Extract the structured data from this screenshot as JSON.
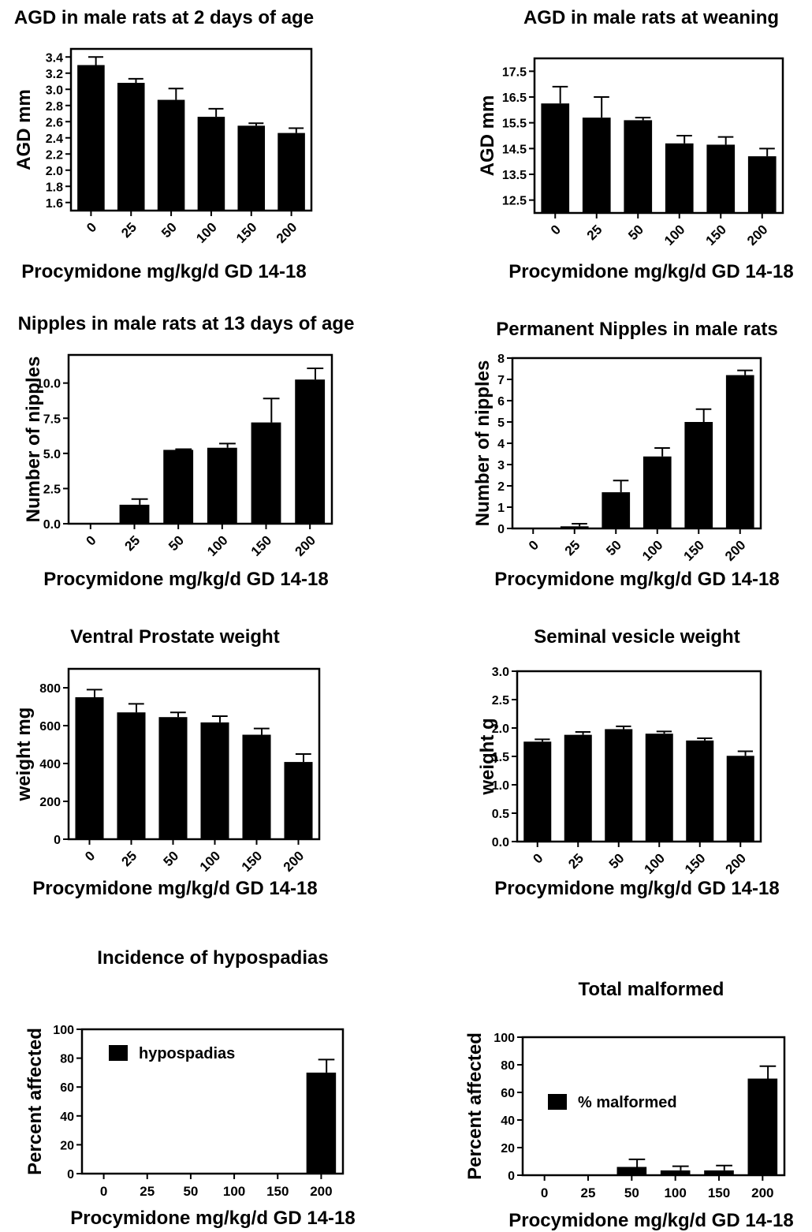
{
  "chart_data": [
    {
      "type": "bar",
      "title": "AGD in male rats at 2 days of age",
      "xlabel": "Procymidone mg/kg/d GD 14-18",
      "ylabel": "AGD mm",
      "categories": [
        "0",
        "25",
        "50",
        "100",
        "150",
        "200"
      ],
      "series": [
        {
          "values": [
            3.3,
            3.08,
            2.87,
            2.66,
            2.55,
            2.46
          ],
          "errors": [
            0.1,
            0.05,
            0.14,
            0.1,
            0.03,
            0.06
          ]
        }
      ],
      "ylim": [
        1.5,
        3.5
      ],
      "yticks": [
        1.6,
        1.8,
        2.0,
        2.2,
        2.4,
        2.6,
        2.8,
        3.0,
        3.2,
        3.4
      ],
      "ytick_labels": [
        "1.6",
        "1.8",
        "2.0",
        "2.2",
        "2.4",
        "2.6",
        "2.8",
        "3.0",
        "3.2",
        "3.4"
      ],
      "rotated_categories": true,
      "grid": false
    },
    {
      "type": "bar",
      "title": "AGD in male rats at weaning",
      "xlabel": "Procymidone mg/kg/d GD 14-18",
      "ylabel": "AGD mm",
      "categories": [
        "0",
        "25",
        "50",
        "100",
        "150",
        "200"
      ],
      "series": [
        {
          "values": [
            16.25,
            15.7,
            15.6,
            14.7,
            14.65,
            14.2
          ],
          "errors": [
            0.65,
            0.8,
            0.1,
            0.3,
            0.3,
            0.3
          ]
        }
      ],
      "ylim": [
        12.0,
        18.0
      ],
      "yticks": [
        12.5,
        13.5,
        14.5,
        15.5,
        16.5,
        17.5
      ],
      "ytick_labels": [
        "12.5",
        "13.5",
        "14.5",
        "15.5",
        "16.5",
        "17.5"
      ],
      "rotated_categories": true,
      "grid": false
    },
    {
      "type": "bar",
      "title": "Nipples in male rats at 13 days of age",
      "xlabel": "Procymidone mg/kg/d GD 14-18",
      "ylabel": "Number of nipples",
      "categories": [
        "0",
        "25",
        "50",
        "100",
        "150",
        "200"
      ],
      "series": [
        {
          "values": [
            0,
            1.35,
            5.25,
            5.4,
            7.2,
            10.25
          ],
          "errors": [
            0,
            0.4,
            0.05,
            0.3,
            1.7,
            0.8
          ]
        }
      ],
      "ylim": [
        0,
        12
      ],
      "yticks": [
        0,
        2.5,
        5,
        7.5,
        10
      ],
      "ytick_labels": [
        "0.0",
        "2.5",
        "5.0",
        "7.5",
        "10.0"
      ],
      "rotated_categories": true,
      "grid": false
    },
    {
      "type": "bar",
      "title": "Permanent Nipples in male rats",
      "xlabel": "Procymidone mg/kg/d GD 14-18",
      "ylabel": "Number of nipples",
      "categories": [
        "0",
        "25",
        "50",
        "100",
        "150",
        "200"
      ],
      "series": [
        {
          "values": [
            0,
            0.1,
            1.7,
            3.38,
            5.0,
            7.2
          ],
          "errors": [
            0,
            0.12,
            0.55,
            0.4,
            0.6,
            0.22
          ]
        }
      ],
      "ylim": [
        0,
        8
      ],
      "yticks": [
        0,
        1,
        2,
        3,
        4,
        5,
        6,
        7,
        8
      ],
      "ytick_labels": [
        "0",
        "1",
        "2",
        "3",
        "4",
        "5",
        "6",
        "7",
        "8"
      ],
      "rotated_categories": true,
      "grid": false
    },
    {
      "type": "bar",
      "title": "Ventral Prostate weight",
      "xlabel": "Procymidone mg/kg/d GD 14-18",
      "ylabel": "weight mg",
      "categories": [
        "0",
        "25",
        "50",
        "100",
        "150",
        "200"
      ],
      "series": [
        {
          "values": [
            750,
            670,
            645,
            617,
            552,
            408
          ],
          "errors": [
            40,
            45,
            25,
            33,
            33,
            42
          ]
        }
      ],
      "ylim": [
        0,
        900
      ],
      "yticks": [
        0,
        200,
        400,
        600,
        800
      ],
      "ytick_labels": [
        "0",
        "200",
        "400",
        "600",
        "800"
      ],
      "rotated_categories": true,
      "grid": false
    },
    {
      "type": "bar",
      "title": "Seminal vesicle weight",
      "xlabel": "Procymidone mg/kg/d GD 14-18",
      "ylabel": "weight g",
      "categories": [
        "0",
        "25",
        "50",
        "100",
        "150",
        "200"
      ],
      "series": [
        {
          "values": [
            1.76,
            1.88,
            1.98,
            1.9,
            1.78,
            1.51
          ],
          "errors": [
            0.04,
            0.05,
            0.05,
            0.04,
            0.04,
            0.08
          ]
        }
      ],
      "ylim": [
        0,
        3.0
      ],
      "yticks": [
        0,
        0.5,
        1.0,
        1.5,
        2.0,
        2.5,
        3.0
      ],
      "ytick_labels": [
        "0.0",
        "0.5",
        "1.0",
        "1.5",
        "2.0",
        "2.5",
        "3.0"
      ],
      "rotated_categories": true,
      "grid": false
    },
    {
      "type": "bar",
      "title": "Incidence of hypospadias",
      "xlabel": "Procymidone mg/kg/d GD 14-18",
      "ylabel": "Percent affected",
      "categories": [
        "0",
        "25",
        "50",
        "100",
        "150",
        "200"
      ],
      "series": [
        {
          "name": "hypospadias",
          "values": [
            0,
            0,
            0,
            0,
            0,
            70
          ],
          "errors": [
            0,
            0,
            0,
            0,
            0,
            9
          ]
        }
      ],
      "ylim": [
        0,
        100
      ],
      "yticks": [
        0,
        20,
        40,
        60,
        80,
        100
      ],
      "ytick_labels": [
        "0",
        "20",
        "40",
        "60",
        "80",
        "100"
      ],
      "rotated_categories": false,
      "legend": "top-left",
      "grid": false
    },
    {
      "type": "bar",
      "title": "Total malformed",
      "xlabel": "Procymidone mg/kg/d GD 14-18",
      "ylabel": "Percent affected",
      "categories": [
        "0",
        "25",
        "50",
        "100",
        "150",
        "200"
      ],
      "series": [
        {
          "name": "% malformed",
          "values": [
            0,
            0,
            6,
            3.5,
            3.5,
            70
          ],
          "errors": [
            0,
            0,
            5.5,
            3,
            3.5,
            9
          ]
        }
      ],
      "ylim": [
        0,
        100
      ],
      "yticks": [
        0,
        20,
        40,
        60,
        80,
        100
      ],
      "ytick_labels": [
        "0",
        "20",
        "40",
        "60",
        "80",
        "100"
      ],
      "rotated_categories": false,
      "legend": "center-left",
      "grid": false
    }
  ]
}
